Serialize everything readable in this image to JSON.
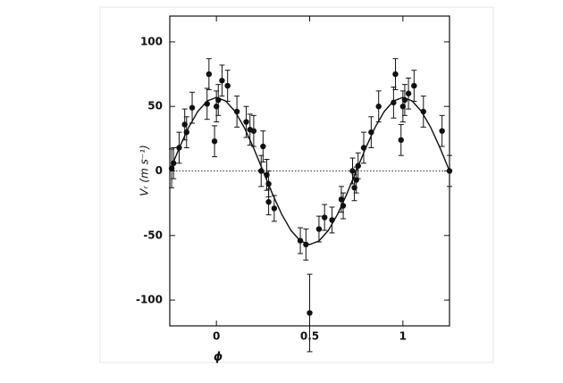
{
  "chart_data": {
    "type": "scatter",
    "x_label": "ϕ",
    "y_label": "Vᵣ (m s⁻¹)",
    "xlim": [
      -0.25,
      1.25
    ],
    "ylim": [
      -120,
      120
    ],
    "xticks": [
      0,
      0.5,
      1
    ],
    "yticks": [
      -100,
      -50,
      0,
      50,
      100
    ],
    "zero_line": true,
    "color": "#111111",
    "series": [
      {
        "color": "#111111",
        "x": [
          -0.24,
          -0.23,
          -0.2,
          -0.17,
          -0.16,
          -0.13,
          -0.05,
          -0.04,
          -0.01,
          0.0,
          0.01,
          0.03,
          0.06,
          0.11,
          0.16,
          0.18,
          0.2,
          0.24,
          0.25,
          0.27,
          0.28,
          0.28,
          0.31,
          0.45,
          0.48,
          0.5,
          0.55,
          0.58,
          0.62,
          0.67,
          0.68,
          0.73,
          0.74,
          0.75,
          0.76,
          0.79,
          0.83,
          0.87,
          0.95,
          0.96,
          0.99,
          1.0,
          1.01,
          1.03,
          1.06,
          1.11,
          1.21,
          1.25
        ],
        "values": [
          2,
          6,
          18,
          36,
          30,
          49,
          52,
          75,
          23,
          50,
          55,
          70,
          66,
          46,
          38,
          32,
          31,
          0,
          19,
          -3,
          -24,
          -10,
          -29,
          -54,
          -57,
          -110,
          -45,
          -36,
          -38,
          -22,
          -27,
          0,
          -13,
          -7,
          4,
          18,
          30,
          50,
          53,
          75,
          24,
          50,
          55,
          60,
          66,
          46,
          31,
          0
        ],
        "errors": [
          15,
          12,
          12,
          12,
          12,
          12,
          12,
          12,
          12,
          12,
          12,
          12,
          12,
          12,
          12,
          12,
          12,
          12,
          12,
          12,
          10,
          10,
          10,
          10,
          12,
          30,
          10,
          10,
          10,
          10,
          10,
          10,
          10,
          10,
          10,
          12,
          12,
          12,
          12,
          12,
          12,
          12,
          12,
          12,
          12,
          12,
          12,
          12
        ]
      },
      {
        "type": "line",
        "color": "#111111",
        "x": [
          -0.25,
          -0.2,
          -0.15,
          -0.1,
          -0.05,
          0,
          0.05,
          0.1,
          0.15,
          0.2,
          0.25,
          0.3,
          0.35,
          0.4,
          0.45,
          0.5,
          0.55,
          0.6,
          0.65,
          0.7,
          0.75,
          0.8,
          0.85,
          0.9,
          0.95,
          1,
          1.05,
          1.1,
          1.15,
          1.2,
          1.25
        ],
        "values": [
          0,
          17.6,
          33.5,
          46.1,
          54.2,
          57,
          54.2,
          46.1,
          33.5,
          17.6,
          0,
          -17.6,
          -33.5,
          -46.1,
          -54.2,
          -57,
          -54.2,
          -46.1,
          -33.5,
          -17.6,
          0,
          17.6,
          33.5,
          46.1,
          54.2,
          57,
          54.2,
          46.1,
          33.5,
          17.6,
          0
        ]
      }
    ]
  }
}
